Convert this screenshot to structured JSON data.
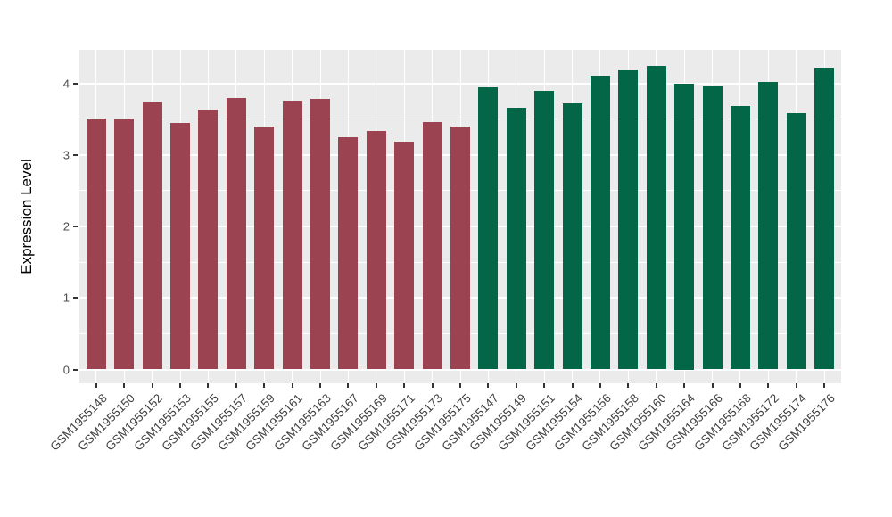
{
  "chart_data": {
    "type": "bar",
    "title": "",
    "xlabel": "",
    "ylabel": "Expression Level",
    "yticks": [
      0,
      1,
      2,
      3,
      4
    ],
    "ylim": [
      -0.21,
      4.45
    ],
    "grid": "white major and minor horizontal lines plus vertical category lines on grey panel",
    "legend_position": "none",
    "categories": [
      "GSM1955148",
      "GSM1955150",
      "GSM1955152",
      "GSM1955153",
      "GSM1955155",
      "GSM1955157",
      "GSM1955159",
      "GSM1955161",
      "GSM1955163",
      "GSM1955167",
      "GSM1955169",
      "GSM1955171",
      "GSM1955173",
      "GSM1955175",
      "GSM1955147",
      "GSM1955149",
      "GSM1955151",
      "GSM1955154",
      "GSM1955156",
      "GSM1955158",
      "GSM1955160",
      "GSM1955164",
      "GSM1955166",
      "GSM1955168",
      "GSM1955172",
      "GSM1955174",
      "GSM1955176"
    ],
    "values": [
      3.51,
      3.51,
      3.74,
      3.45,
      3.63,
      3.8,
      3.4,
      3.76,
      3.78,
      3.24,
      3.33,
      3.19,
      3.46,
      3.39,
      3.95,
      3.66,
      3.9,
      3.72,
      4.11,
      4.19,
      4.24,
      4.0,
      3.97,
      3.68,
      4.02,
      3.58,
      4.22
    ],
    "bar_groups": [
      "maroon",
      "maroon",
      "maroon",
      "maroon",
      "maroon",
      "maroon",
      "maroon",
      "maroon",
      "maroon",
      "maroon",
      "maroon",
      "maroon",
      "maroon",
      "maroon",
      "green",
      "green",
      "green",
      "green",
      "green",
      "green",
      "green",
      "green",
      "green",
      "green",
      "green",
      "green",
      "green"
    ],
    "group_colors": {
      "maroon": "#9C4351",
      "green": "#026647"
    },
    "colors": {
      "panel_background": "#EBEBEB",
      "gridline": "#FFFFFF",
      "axis_text": "#4D4D4D",
      "x_axis_text": "#404040",
      "tick_mark": "#333333",
      "outer_background": "#FFFFFF"
    }
  }
}
